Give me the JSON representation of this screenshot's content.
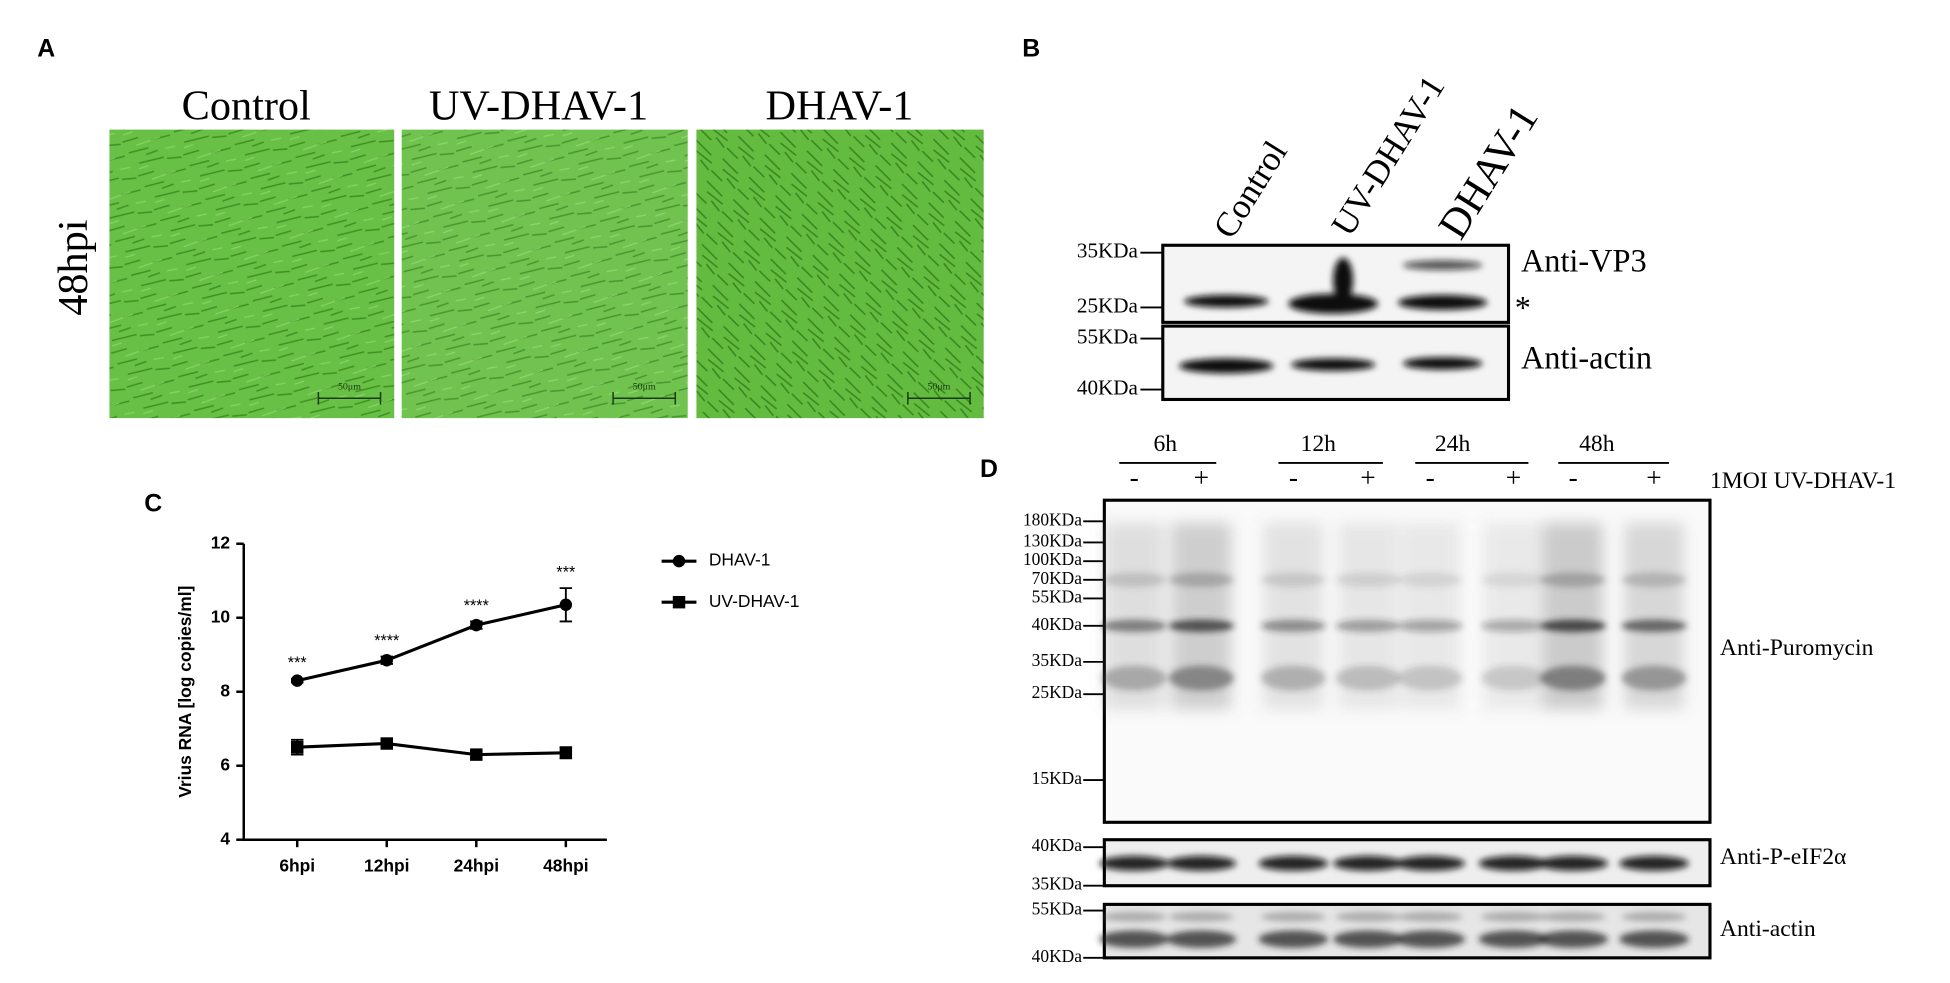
{
  "panel_a": {
    "label": "A",
    "row_label": "48hpi",
    "columns": [
      "Control",
      "UV-DHAV-1",
      "DHAV-1"
    ],
    "scale_bar": "50μm"
  },
  "panel_b": {
    "label": "B",
    "lanes": [
      "Control",
      "UV-DHAV-1",
      "DHAV-1"
    ],
    "markers": [
      "35KDa",
      "25KDa",
      "55KDa",
      "40KDa"
    ],
    "blots": [
      "Anti-VP3",
      "Anti-actin"
    ],
    "asterisk": "*"
  },
  "panel_c": {
    "label": "C"
  },
  "chart_data": {
    "type": "line",
    "ylabel": "Vrius RNA [log copies/ml]",
    "categories": [
      "6hpi",
      "12hpi",
      "24hpi",
      "48hpi"
    ],
    "series": [
      {
        "name": "DHAV-1",
        "color": "#000000",
        "marker": "circle",
        "values": [
          8.3,
          8.85,
          9.8,
          10.35
        ],
        "errors": [
          0.05,
          0.1,
          0.1,
          0.45
        ]
      },
      {
        "name": "UV-DHAV-1",
        "color": "#000000",
        "marker": "square",
        "values": [
          6.5,
          6.6,
          6.3,
          6.35
        ],
        "errors": [
          0.2,
          0.1,
          0.1,
          0.15
        ]
      }
    ],
    "annotations": [
      "***",
      "****",
      "****",
      "***"
    ],
    "ylim": [
      4,
      12
    ],
    "yticks": [
      4,
      6,
      8,
      10,
      12
    ],
    "grid": false,
    "legend": "right"
  },
  "panel_d": {
    "label": "D",
    "timepoints": [
      "6h",
      "12h",
      "24h",
      "48h"
    ],
    "signs": [
      "-",
      "+"
    ],
    "treatment": "1MOI UV-DHAV-1",
    "markers_puromycin": [
      "180KDa",
      "130KDa",
      "100KDa",
      "70KDa",
      "55KDa",
      "40KDa",
      "35KDa",
      "25KDa",
      "15KDa"
    ],
    "markers_eif2a": [
      "40KDa",
      "35KDa"
    ],
    "markers_actin": [
      "55KDa",
      "40KDa"
    ],
    "blots": [
      "Anti-Puromycin",
      "Anti-P-eIF2α",
      "Anti-actin"
    ]
  }
}
